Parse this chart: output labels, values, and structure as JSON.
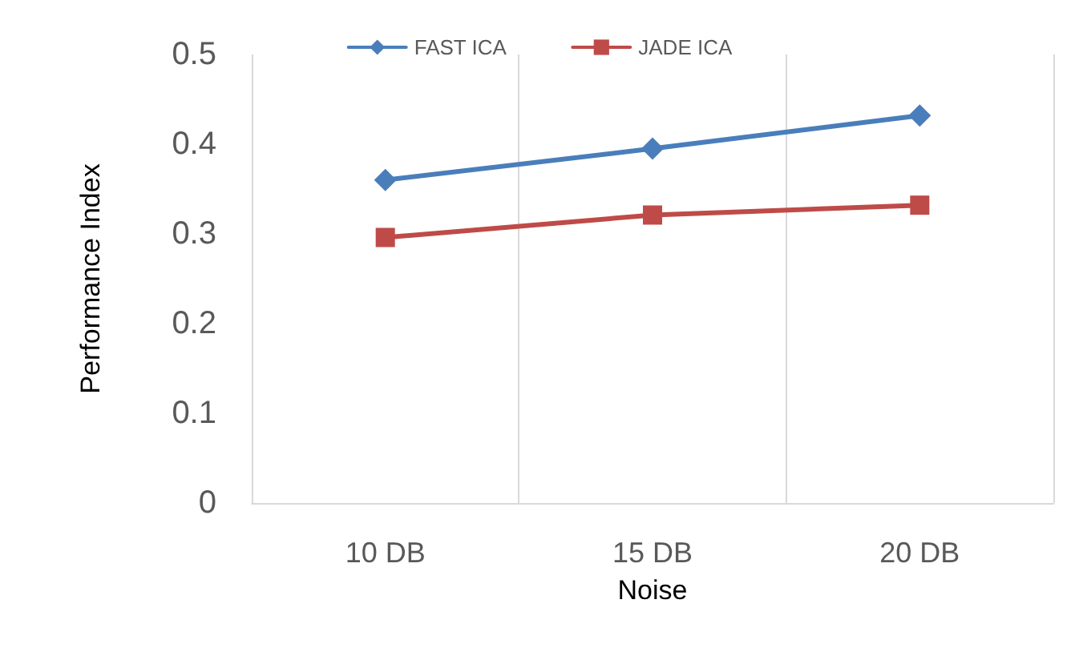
{
  "chart_data": {
    "type": "line",
    "xlabel": "Noise",
    "ylabel": "Performance Index",
    "categories": [
      "10 DB",
      "15 DB",
      "20 DB"
    ],
    "series": [
      {
        "name": "FAST ICA",
        "color": "#4a7ebb",
        "marker": "diamond",
        "values": [
          0.36,
          0.395,
          0.432
        ]
      },
      {
        "name": "JADE ICA",
        "color": "#be4b48",
        "marker": "square",
        "values": [
          0.296,
          0.321,
          0.332
        ]
      }
    ],
    "ylim": [
      0,
      0.5
    ],
    "yticks": [
      0,
      0.1,
      0.2,
      0.3,
      0.4,
      0.5
    ],
    "grid": "x",
    "legend": "top",
    "line_style": "solid"
  }
}
